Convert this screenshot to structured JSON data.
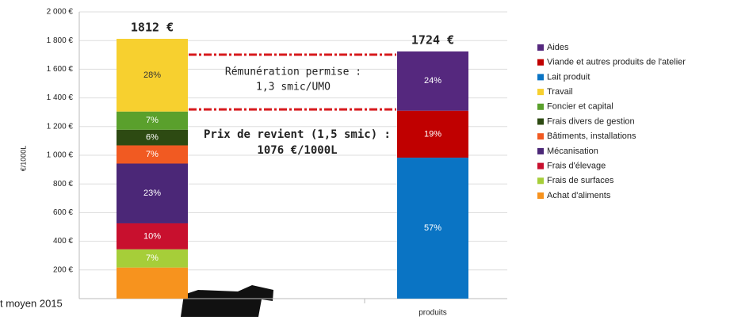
{
  "chart_data": {
    "type": "stacked_bar",
    "y_label": "€/1000L",
    "categories": [
      null,
      "produits"
    ],
    "ylim": [
      0,
      2000
    ],
    "yticks": [
      {
        "value": 200,
        "label": "200 €"
      },
      {
        "value": 400,
        "label": "400 €"
      },
      {
        "value": 600,
        "label": "600 €"
      },
      {
        "value": 800,
        "label": "800 €"
      },
      {
        "value": 1000,
        "label": "1 000 €"
      },
      {
        "value": 1200,
        "label": "1 200 €"
      },
      {
        "value": 1400,
        "label": "1 400 €"
      },
      {
        "value": 1600,
        "label": "1 600 €"
      },
      {
        "value": 1800,
        "label": "1 800 €"
      },
      {
        "value": 2000,
        "label": "2 000 €"
      }
    ],
    "grid": true,
    "series": [
      {
        "name": "Achat d'aliments",
        "color": "#f7931e",
        "values": [
          217,
          null
        ],
        "value_labels": [
          null,
          null
        ]
      },
      {
        "name": "Frais de surfaces",
        "color": "#a6ce39",
        "values": [
          127,
          null
        ],
        "value_labels": [
          "7%",
          null
        ]
      },
      {
        "name": "Frais d'élevage",
        "color": "#c8102e",
        "values": [
          181,
          null
        ],
        "value_labels": [
          "10%",
          null
        ]
      },
      {
        "name": "Mécanisation",
        "color": "#4b2777",
        "values": [
          417,
          null
        ],
        "value_labels": [
          "23%",
          null
        ]
      },
      {
        "name": "Bâtiments, installations",
        "color": "#f15a22",
        "values": [
          127,
          null
        ],
        "value_labels": [
          "7%",
          null
        ]
      },
      {
        "name": "Frais divers de gestion",
        "color": "#2d4a12",
        "values": [
          109,
          null
        ],
        "value_labels": [
          "6%",
          null
        ]
      },
      {
        "name": "Foncier et capital",
        "color": "#5aa02c",
        "values": [
          127,
          null
        ],
        "value_labels": [
          "7%",
          null
        ]
      },
      {
        "name": "Travail",
        "color": "#f7d02f",
        "values": [
          507,
          null
        ],
        "value_labels": [
          "28%",
          null
        ]
      },
      {
        "name": "Lait produit",
        "color": "#0a74c4",
        "values": [
          null,
          983
        ],
        "value_labels": [
          null,
          "57%"
        ]
      },
      {
        "name": "Viande et autres produits de l'atelier",
        "color": "#c00000",
        "values": [
          null,
          328
        ],
        "value_labels": [
          null,
          "19%"
        ]
      },
      {
        "name": "Aides",
        "color": "#55287e",
        "values": [
          null,
          413
        ],
        "value_labels": [
          null,
          "24%"
        ]
      }
    ],
    "totals": [
      1812,
      1724
    ],
    "total_labels": [
      "1812 €",
      "1724 €"
    ],
    "reference_lines": [
      1812,
      1320
    ],
    "reference_color": "#d7191c",
    "annotations": [
      "Rémunération permise :",
      "1,3 smic/UMO",
      "Prix de revient (1,5 smic) :",
      "1076 €/1000L"
    ],
    "footer_text": "t moyen 2015"
  }
}
